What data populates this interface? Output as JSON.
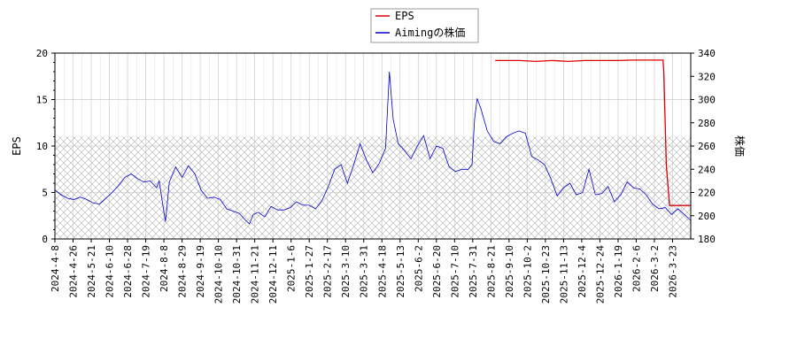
{
  "chart_data": {
    "type": "line",
    "legend_position": "top-center",
    "grid": true,
    "hatched_band": {
      "y_range": [
        0,
        11
      ],
      "axis": "left"
    },
    "x_tick_labels": [
      "2024-4-8",
      "2024-4-26",
      "2024-5-21",
      "2024-6-10",
      "2024-6-28",
      "2024-7-19",
      "2024-8-8",
      "2024-8-29",
      "2024-9-19",
      "2024-10-10",
      "2024-10-31",
      "2024-11-21",
      "2024-12-11",
      "2025-1-6",
      "2025-1-27",
      "2025-2-17",
      "2025-3-10",
      "2025-3-31",
      "2025-4-18",
      "2025-5-13",
      "2025-6-2",
      "2025-6-20",
      "2025-7-10",
      "2025-7-31",
      "2025-8-21",
      "2025-9-10",
      "2025-10-2",
      "2025-10-23",
      "2025-11-13",
      "2025-12-4",
      "2025-12-24",
      "2026-1-19",
      "2026-2-6",
      "2026-3-2",
      "2026-3-23"
    ],
    "left_axis": {
      "label": "EPS",
      "range": [
        0,
        20
      ],
      "ticks": [
        "0",
        "5",
        "10",
        "15",
        "20"
      ]
    },
    "right_axis": {
      "label": "株価",
      "range": [
        180,
        340
      ],
      "ticks": [
        "180",
        "200",
        "220",
        "240",
        "260",
        "280",
        "300",
        "320",
        "340"
      ]
    },
    "series": [
      {
        "name": "EPS",
        "axis": "left",
        "color": "#dd0000",
        "points": [
          [
            27.0,
            19.2
          ],
          [
            28.5,
            19.2
          ],
          [
            29.5,
            19.1
          ],
          [
            30.5,
            19.2
          ],
          [
            31.5,
            19.1
          ],
          [
            32.5,
            19.2
          ],
          [
            33.5,
            19.2
          ],
          [
            34.5,
            19.2
          ],
          [
            35.5,
            19.25
          ],
          [
            36.5,
            19.25
          ],
          [
            37.3,
            19.25
          ],
          [
            37.35,
            18.0
          ],
          [
            37.5,
            8.0
          ],
          [
            37.7,
            3.6
          ],
          [
            38.6,
            3.6
          ],
          [
            39.0,
            3.6
          ]
        ]
      },
      {
        "name": "Aimingの株価",
        "axis": "right",
        "color": "#0000cc",
        "points": [
          [
            0,
            222
          ],
          [
            0.5,
            218
          ],
          [
            1,
            215
          ],
          [
            1.5,
            214
          ],
          [
            2,
            216
          ],
          [
            2.5,
            214
          ],
          [
            3,
            211
          ],
          [
            3.5,
            210
          ],
          [
            4,
            215
          ],
          [
            4.5,
            220
          ],
          [
            5,
            226
          ],
          [
            5.5,
            233
          ],
          [
            6,
            236
          ],
          [
            6.5,
            232
          ],
          [
            7,
            229
          ],
          [
            7.5,
            230
          ],
          [
            8,
            224
          ],
          [
            8.2,
            230
          ],
          [
            8.5,
            208
          ],
          [
            8.7,
            195
          ],
          [
            9,
            229
          ],
          [
            9.5,
            242
          ],
          [
            10,
            233
          ],
          [
            10.5,
            243
          ],
          [
            11,
            236
          ],
          [
            11.5,
            222
          ],
          [
            12,
            215
          ],
          [
            12.5,
            216
          ],
          [
            13,
            214
          ],
          [
            13.5,
            206
          ],
          [
            14,
            204
          ],
          [
            14.5,
            202
          ],
          [
            15,
            196
          ],
          [
            15.3,
            193
          ],
          [
            15.6,
            201
          ],
          [
            16,
            203
          ],
          [
            16.5,
            199
          ],
          [
            17,
            208
          ],
          [
            17.5,
            205
          ],
          [
            18,
            205
          ],
          [
            18.5,
            207
          ],
          [
            19,
            212
          ],
          [
            19.5,
            209
          ],
          [
            20,
            209
          ],
          [
            20.5,
            206
          ],
          [
            21,
            213
          ],
          [
            21.5,
            225
          ],
          [
            22,
            240
          ],
          [
            22.5,
            244
          ],
          [
            23,
            228
          ],
          [
            23.5,
            244
          ],
          [
            24,
            262
          ],
          [
            24.5,
            248
          ],
          [
            25,
            237
          ],
          [
            25.5,
            245
          ],
          [
            26,
            258
          ],
          [
            26.3,
            324
          ],
          [
            26.6,
            283
          ],
          [
            27,
            262
          ],
          [
            27.5,
            256
          ],
          [
            28,
            249
          ],
          [
            28.5,
            260
          ],
          [
            29,
            269
          ],
          [
            29.5,
            249
          ],
          [
            30,
            260
          ],
          [
            30.5,
            258
          ],
          [
            31,
            242
          ],
          [
            31.5,
            238
          ],
          [
            32,
            240
          ],
          [
            32.5,
            240
          ],
          [
            32.8,
            244
          ],
          [
            33.0,
            283
          ],
          [
            33.2,
            301
          ],
          [
            33.5,
            292
          ],
          [
            34,
            273
          ],
          [
            34.5,
            264
          ],
          [
            35,
            262
          ],
          [
            35.5,
            268
          ],
          [
            36,
            271
          ],
          [
            36.5,
            273
          ],
          [
            37,
            271
          ],
          [
            37.5,
            251
          ],
          [
            38,
            248
          ],
          [
            38.5,
            244
          ],
          [
            39,
            232
          ],
          [
            39.5,
            217
          ],
          [
            40,
            224
          ],
          [
            40.5,
            228
          ],
          [
            41,
            218
          ],
          [
            41.5,
            220
          ],
          [
            42,
            240
          ],
          [
            42.5,
            218
          ],
          [
            43,
            219
          ],
          [
            43.5,
            225
          ],
          [
            44,
            212
          ],
          [
            44.5,
            218
          ],
          [
            45,
            229
          ],
          [
            45.5,
            224
          ],
          [
            46,
            223
          ],
          [
            46.5,
            218
          ],
          [
            47,
            210
          ],
          [
            47.5,
            206
          ],
          [
            48,
            207
          ],
          [
            48.5,
            201
          ],
          [
            49,
            206
          ],
          [
            49.5,
            201
          ],
          [
            50,
            196
          ]
        ]
      }
    ],
    "x_points_span": [
      0,
      50
    ],
    "eps_x_span": [
      0,
      39
    ]
  }
}
